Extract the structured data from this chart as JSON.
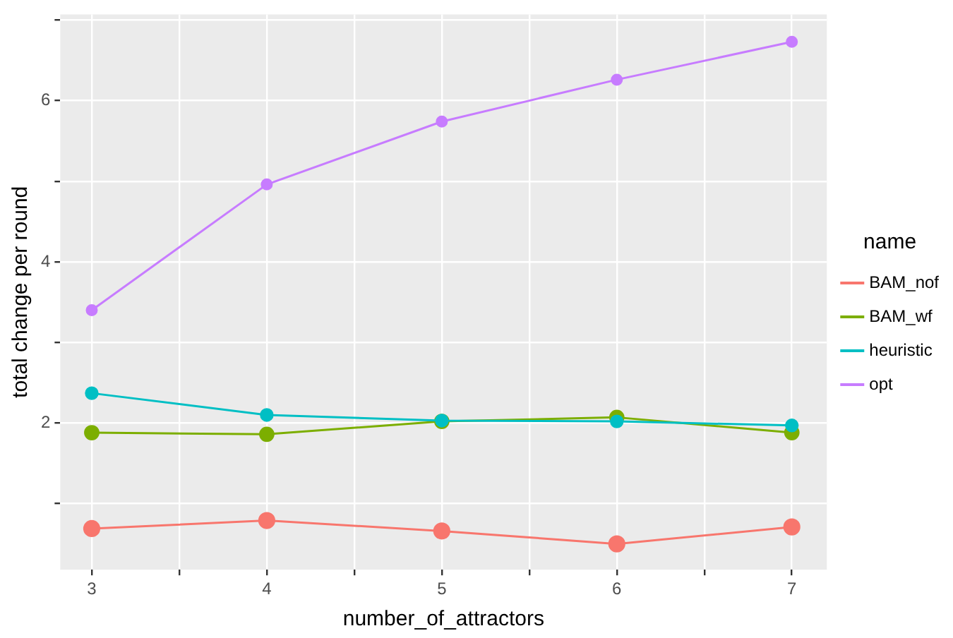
{
  "chart_data": {
    "type": "line",
    "xlabel": "number_of_attractors",
    "ylabel": "total change per round",
    "legend_title": "name",
    "x": [
      3,
      4,
      5,
      6,
      7
    ],
    "series": [
      {
        "name": "BAM_nof",
        "color": "#f8766d",
        "values": [
          0.69,
          0.79,
          0.66,
          0.5,
          0.71
        ]
      },
      {
        "name": "BAM_wf",
        "color": "#7cae00",
        "values": [
          1.88,
          1.86,
          2.02,
          2.07,
          1.88
        ]
      },
      {
        "name": "heuristic",
        "color": "#00bfc4",
        "values": [
          2.37,
          2.1,
          2.03,
          2.02,
          1.97
        ]
      },
      {
        "name": "opt",
        "color": "#c77cff",
        "values": [
          3.4,
          4.96,
          5.74,
          6.26,
          6.73
        ]
      }
    ],
    "xlim": [
      2.82,
      7.2
    ],
    "ylim": [
      0.18,
      7.07
    ],
    "xticks": [
      3,
      {
        "value": 3.5,
        "label": null
      },
      4,
      {
        "value": 4.5,
        "label": null
      },
      5,
      {
        "value": 5.5,
        "label": null
      },
      6,
      {
        "value": 6.5,
        "label": null
      },
      7
    ],
    "yticks": [
      {
        "value": 1,
        "label": null
      },
      2,
      {
        "value": 3,
        "label": null
      },
      4,
      {
        "value": 5,
        "label": null
      },
      6,
      {
        "value": 7,
        "label": null
      }
    ],
    "grid": true,
    "legend": "right",
    "marker": "circle",
    "line_style": "solid"
  }
}
